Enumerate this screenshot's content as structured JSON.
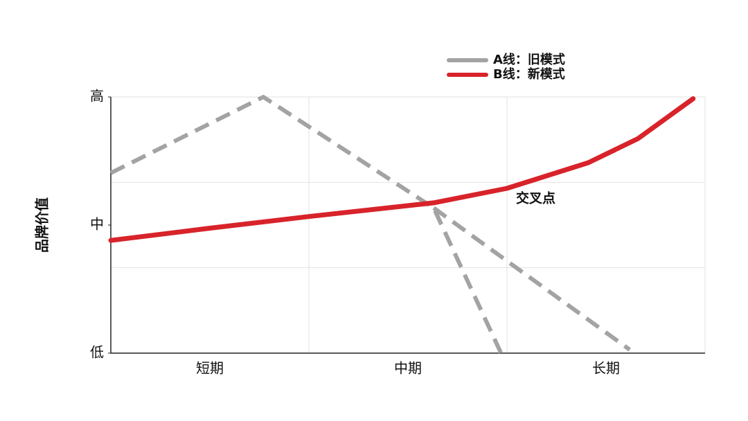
{
  "chart_data": {
    "type": "line",
    "ylabel": "品牌价值",
    "categories": [
      "短期",
      "中期",
      "长期"
    ],
    "xlim": [
      0,
      3
    ],
    "ylim": [
      0,
      3
    ],
    "yticks": [
      {
        "value": 0,
        "label": "低"
      },
      {
        "value": 1.5,
        "label": "中"
      },
      {
        "value": 3,
        "label": "高"
      }
    ],
    "grid_x": [
      1,
      2
    ],
    "grid_y": [
      1,
      2
    ],
    "series": [
      {
        "name": "A线：旧模式",
        "color": "#a3a3a3",
        "style": "dashed",
        "x": [
          0,
          0.77,
          1.63,
          1.97,
          null,
          1.63,
          2.62
        ],
        "values": [
          2.11,
          3,
          1.7,
          0,
          null,
          1.7,
          0.04
        ]
      },
      {
        "name": "B线：新模式",
        "color": "#d8232a",
        "style": "solid",
        "x": [
          0,
          0.49,
          1.0,
          1.63,
          2.0,
          2.41,
          2.66,
          2.94
        ],
        "values": [
          1.32,
          1.46,
          1.6,
          1.76,
          1.93,
          2.23,
          2.51,
          2.98
        ]
      }
    ],
    "annotation": "交叉点"
  }
}
